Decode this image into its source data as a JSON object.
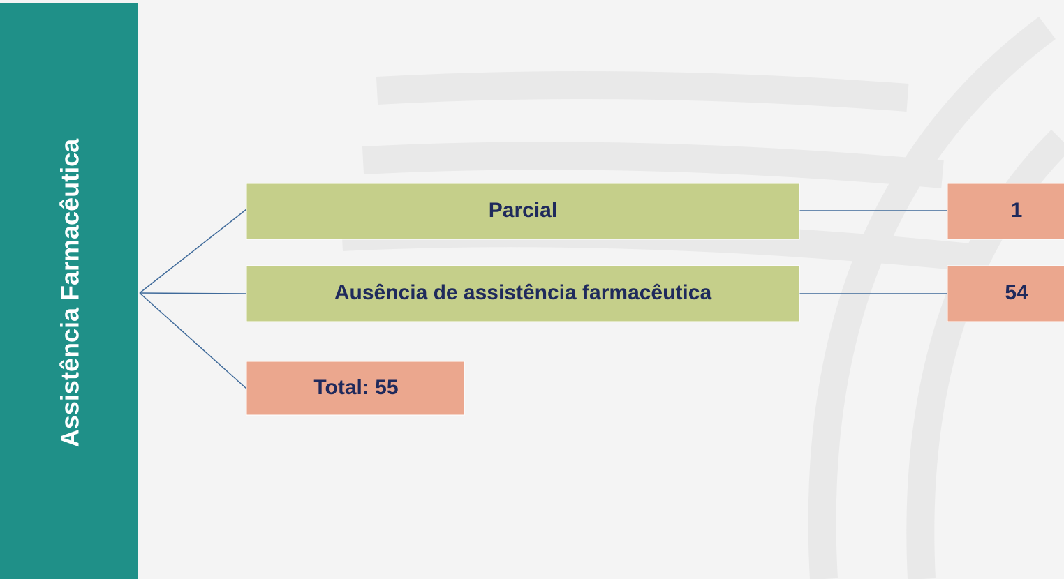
{
  "root": {
    "label": "Assistência Farmacêutica"
  },
  "branches": [
    {
      "label": "Parcial",
      "count": 1
    },
    {
      "label": "Ausência de assistência farmacêutica",
      "count": 54
    }
  ],
  "total": {
    "label": "Total: 55"
  }
}
